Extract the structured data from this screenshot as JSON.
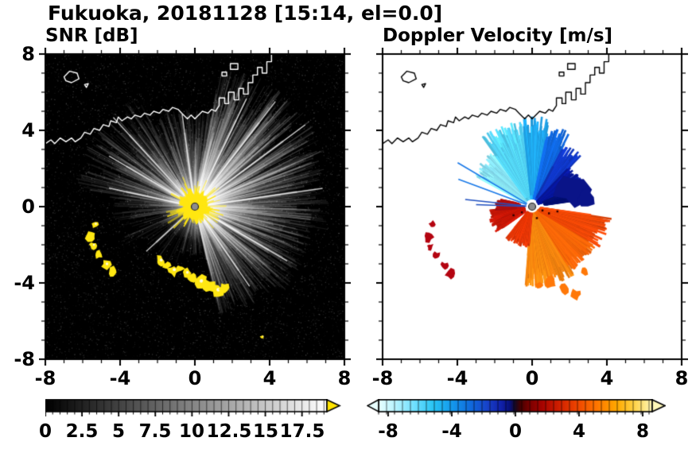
{
  "figure": {
    "title": "Fukuoka, 20181128 [15:14, el=0.0]"
  },
  "chart_data": [
    {
      "type": "heatmap",
      "panel": "left",
      "title": "SNR [dB]",
      "xlim": [
        -8,
        8
      ],
      "ylim": [
        -8,
        8
      ],
      "xticks": [
        -8,
        -4,
        0,
        4,
        8
      ],
      "yticks": [
        8,
        4,
        0,
        -4,
        -8
      ],
      "xtick_labels": [
        "-8",
        "-4",
        "0",
        "4",
        "8"
      ],
      "ytick_labels": [
        "8",
        "4",
        "0",
        "-4",
        "-8"
      ],
      "minor_step": 1,
      "background": "#000000",
      "radar_site": [
        0,
        0
      ],
      "colorbar": {
        "range": [
          0,
          19.2
        ],
        "minor_step": 0.5,
        "label_values": [
          0,
          2.5,
          5,
          7.5,
          10,
          12.5,
          15,
          17.5
        ],
        "tick_labels": [
          "0",
          "2.5",
          "5",
          "7.5",
          "10",
          "12.5",
          "15",
          "17.5"
        ],
        "colormap": [
          [
            0,
            "#000000"
          ],
          [
            1,
            "#ffffff"
          ]
        ],
        "over_color": "#ffe400",
        "arrow_right": true,
        "arrow_left": false
      },
      "features": {
        "noise_count": 9000,
        "glow_radius": 1.9,
        "ray_sectors": [
          {
            "a0": -78,
            "a1": -45,
            "count": 240,
            "rmin": 0.9,
            "rmax": 6.0,
            "alpha": 0.1
          },
          {
            "a0": -45,
            "a1": -12,
            "count": 280,
            "rmin": 0.9,
            "rmax": 6.5,
            "alpha": 0.12
          },
          {
            "a0": -12,
            "a1": 22,
            "count": 300,
            "rmin": 0.9,
            "rmax": 7.2,
            "alpha": 0.12
          },
          {
            "a0": 22,
            "a1": 80,
            "count": 480,
            "rmin": 0.9,
            "rmax": 7.6,
            "alpha": 0.14
          },
          {
            "a0": 80,
            "a1": 118,
            "count": 200,
            "rmin": 0.9,
            "rmax": 5.2,
            "alpha": 0.1
          },
          {
            "a0": 118,
            "a1": 172,
            "count": 280,
            "rmin": 0.9,
            "rmax": 6.6,
            "alpha": 0.11
          },
          {
            "a0": 172,
            "a1": 208,
            "count": 80,
            "rmin": 0.9,
            "rmax": 4.6,
            "alpha": 0.08
          },
          {
            "a0": 208,
            "a1": 252,
            "count": 36,
            "rmin": 0.9,
            "rmax": 3.6,
            "alpha": 0.07
          },
          {
            "a0": 252,
            "a1": 282,
            "count": 56,
            "rmin": 0.7,
            "rmax": 2.6,
            "alpha": 0.08
          }
        ],
        "bright_rays": [
          {
            "a": 8,
            "r": 6.9
          },
          {
            "a": 36,
            "r": 7.3
          },
          {
            "a": 52,
            "r": 7.0
          },
          {
            "a": 64,
            "r": 6.3
          },
          {
            "a": 98,
            "r": 4.9
          },
          {
            "a": 133,
            "r": 6.4
          },
          {
            "a": 150,
            "r": 5.3
          },
          {
            "a": 168,
            "r": 4.7
          },
          {
            "a": 222,
            "r": 3.5
          },
          {
            "a": -30,
            "r": 5.7
          },
          {
            "a": -55,
            "r": 5.1
          }
        ],
        "center_blob": {
          "color": "#ffe712",
          "r_core": 0.78,
          "r_spikes": 1.7,
          "spikes": 110
        },
        "yellow_color": "#ffe712",
        "yellow_patches": [
          [
            -5.35,
            -0.95,
            0.2
          ],
          [
            -5.55,
            -1.55,
            0.26
          ],
          [
            -5.45,
            -2.05,
            0.18
          ],
          [
            -5.15,
            -2.5,
            0.2
          ],
          [
            -4.75,
            -3.05,
            0.24
          ],
          [
            -4.4,
            -3.45,
            0.28
          ],
          [
            -1.85,
            -2.85,
            0.26
          ],
          [
            -1.5,
            -3.1,
            0.22
          ],
          [
            -1.15,
            -3.35,
            0.28
          ],
          [
            -0.8,
            -3.25,
            0.2
          ],
          [
            -0.45,
            -3.5,
            0.24
          ],
          [
            -0.1,
            -3.7,
            0.28
          ],
          [
            0.3,
            -3.95,
            0.32
          ],
          [
            0.75,
            -4.2,
            0.36
          ],
          [
            1.2,
            -4.4,
            0.32
          ],
          [
            1.55,
            -4.25,
            0.24
          ],
          [
            3.6,
            -6.85,
            0.1
          ]
        ]
      }
    },
    {
      "type": "heatmap",
      "panel": "right",
      "title": "Doppler Velocity [m/s]",
      "xlim": [
        -8,
        8
      ],
      "ylim": [
        -8,
        8
      ],
      "xticks": [
        -8,
        -4,
        0,
        4,
        8
      ],
      "yticks": [
        8,
        4,
        0,
        -4,
        -8
      ],
      "xtick_labels": [
        "-8",
        "-4",
        "0",
        "4",
        "8"
      ],
      "minor_step": 1,
      "background": "#ffffff",
      "radar_site": [
        0,
        0
      ],
      "colorbar": {
        "range": [
          -8.6,
          8.6
        ],
        "minor_step": 0.5,
        "label_values": [
          -8,
          -4,
          0,
          4,
          8
        ],
        "tick_labels": [
          "-8",
          "-4",
          "0",
          "4",
          "8"
        ],
        "colormap": [
          [
            0,
            "#e8ffff"
          ],
          [
            0.06,
            "#b8f4ff"
          ],
          [
            0.13,
            "#70e0ff"
          ],
          [
            0.2,
            "#28c4f4"
          ],
          [
            0.27,
            "#1498ec"
          ],
          [
            0.34,
            "#1068dc"
          ],
          [
            0.4,
            "#1840c8"
          ],
          [
            0.45,
            "#1020a8"
          ],
          [
            0.48,
            "#081078"
          ],
          [
            0.5,
            "#180820"
          ],
          [
            0.52,
            "#480000"
          ],
          [
            0.55,
            "#780000"
          ],
          [
            0.6,
            "#a80400"
          ],
          [
            0.66,
            "#d02000"
          ],
          [
            0.73,
            "#f04800"
          ],
          [
            0.8,
            "#ff7800"
          ],
          [
            0.87,
            "#ffa800"
          ],
          [
            0.93,
            "#ffd040"
          ],
          [
            1,
            "#fff8b8"
          ]
        ],
        "arrow_right": true,
        "arrow_left": true
      },
      "features": {
        "velocity_sectors": [
          {
            "a0": 126,
            "a1": 152,
            "c": "#8ceaff",
            "rmin": 0.5,
            "rmax": 3.6
          },
          {
            "a0": 96,
            "a1": 126,
            "c": "#54d4f8",
            "rmin": 0.5,
            "rmax": 4.6
          },
          {
            "a0": 78,
            "a1": 96,
            "c": "#20a8f0",
            "rmin": 0.5,
            "rmax": 4.8
          },
          {
            "a0": 62,
            "a1": 78,
            "c": "#1068e0",
            "rmin": 0.5,
            "rmax": 4.4
          },
          {
            "a0": 46,
            "a1": 62,
            "c": "#1038c8",
            "rmin": 0.5,
            "rmax": 3.8
          },
          {
            "a0": 22,
            "a1": 46,
            "c": "#0818a0",
            "rmin": 0.4,
            "rmax": 3.0
          },
          {
            "a0": 8,
            "a1": 22,
            "c": "#041070",
            "rmin": 0.8,
            "rmax": 2.6
          },
          {
            "a0": -95,
            "a1": -58,
            "c": "#ff8810",
            "rmin": 0.4,
            "rmax": 4.3
          },
          {
            "a0": -58,
            "a1": -30,
            "c": "#ff6808",
            "rmin": 0.4,
            "rmax": 4.0
          },
          {
            "a0": -30,
            "a1": -8,
            "c": "#f04808",
            "rmin": 0.5,
            "rmax": 4.3
          },
          {
            "a0": -130,
            "a1": -95,
            "c": "#e83808",
            "rmin": 0.4,
            "rmax": 2.2
          },
          {
            "a0": 185,
            "a1": 215,
            "c": "#c81808",
            "rmin": 0.5,
            "rmax": 2.4
          },
          {
            "a0": 168,
            "a1": 185,
            "c": "#b01010",
            "rmin": 0.8,
            "rmax": 2.0
          }
        ],
        "thin_rays": [
          {
            "a": 150,
            "r": 4.6,
            "c": "#1878e8"
          },
          {
            "a": 160,
            "r": 4.2,
            "c": "#1878e8"
          },
          {
            "a": 174,
            "r": 3.6,
            "c": "#2050c0"
          },
          {
            "a": 178,
            "r": 3.0,
            "c": "#2050c0"
          }
        ],
        "navy_blobs": [
          [
            2.1,
            0.9,
            0.8,
            "#0a1488"
          ],
          [
            2.9,
            0.5,
            0.45,
            "#0a1488"
          ]
        ],
        "red_patches": [
          [
            -5.35,
            -0.95,
            0.18
          ],
          [
            -5.55,
            -1.6,
            0.24
          ],
          [
            -5.45,
            -2.1,
            0.16
          ],
          [
            -5.1,
            -2.55,
            0.18
          ],
          [
            -4.7,
            -3.1,
            0.2
          ],
          [
            -4.4,
            -3.5,
            0.24
          ]
        ],
        "red_color": "#b40410",
        "orange_scatter": [
          [
            1.0,
            -3.95,
            0.28
          ],
          [
            1.7,
            -4.3,
            0.3
          ],
          [
            2.35,
            -4.6,
            0.26
          ],
          [
            2.8,
            -3.4,
            0.2
          ],
          [
            0.35,
            -4.15,
            0.18
          ]
        ],
        "orange_color": "#ff7808",
        "dark_specks": [
          [
            0.5,
            -0.15
          ],
          [
            0.85,
            -0.3
          ],
          [
            -0.6,
            -0.25
          ],
          [
            -1.05,
            -0.4
          ],
          [
            0.2,
            -0.55
          ],
          [
            1.3,
            -0.2
          ]
        ],
        "speck_color": "#300000",
        "center_gap_radius": 0.32
      }
    }
  ],
  "coastline": {
    "color_left_panel": "#ffffff",
    "color_right_panel": "#000000",
    "paths": [
      [
        [
          -8,
          3.3
        ],
        [
          -7.7,
          3.5
        ],
        [
          -7.5,
          3.3
        ],
        [
          -7.2,
          3.6
        ],
        [
          -6.9,
          3.4
        ],
        [
          -6.6,
          3.6
        ],
        [
          -6.4,
          3.4
        ],
        [
          -6.1,
          3.6
        ],
        [
          -5.9,
          3.9
        ],
        [
          -5.6,
          3.8
        ],
        [
          -5.4,
          4.1
        ],
        [
          -5.1,
          4.0
        ],
        [
          -4.9,
          4.3
        ],
        [
          -4.6,
          4.2
        ],
        [
          -4.5,
          4.5
        ],
        [
          -4.2,
          4.4
        ],
        [
          -4.1,
          4.7
        ],
        [
          -3.9,
          4.5
        ],
        [
          -3.6,
          4.7
        ],
        [
          -3.4,
          4.6
        ],
        [
          -3.2,
          4.8
        ],
        [
          -2.9,
          4.7
        ],
        [
          -2.7,
          4.9
        ],
        [
          -2.4,
          4.8
        ],
        [
          -2.2,
          5.0
        ],
        [
          -1.9,
          4.9
        ],
        [
          -1.7,
          5.1
        ],
        [
          -1.4,
          5.0
        ],
        [
          -1.2,
          5.2
        ],
        [
          -0.9,
          5.1
        ],
        [
          -0.7,
          4.9
        ],
        [
          -0.4,
          4.6
        ],
        [
          -0.2,
          4.8
        ],
        [
          0.0,
          4.6
        ],
        [
          0.2,
          4.8
        ],
        [
          0.4,
          5.0
        ],
        [
          0.7,
          4.9
        ],
        [
          0.9,
          5.1
        ],
        [
          1.1,
          5.0
        ],
        [
          1.3,
          5.3
        ],
        [
          1.3,
          5.7
        ],
        [
          1.6,
          5.7
        ],
        [
          1.6,
          5.4
        ],
        [
          1.8,
          5.4
        ],
        [
          1.8,
          6.0
        ],
        [
          2.1,
          6.0
        ],
        [
          2.1,
          5.6
        ],
        [
          2.35,
          5.6
        ],
        [
          2.35,
          6.2
        ],
        [
          2.6,
          6.2
        ],
        [
          2.6,
          5.9
        ],
        [
          2.85,
          5.9
        ],
        [
          2.85,
          6.5
        ],
        [
          3.1,
          6.5
        ],
        [
          3.1,
          6.9
        ],
        [
          3.35,
          6.9
        ],
        [
          3.35,
          7.3
        ],
        [
          3.6,
          7.3
        ],
        [
          3.6,
          7.0
        ],
        [
          3.85,
          7.0
        ],
        [
          3.85,
          7.6
        ],
        [
          4.1,
          7.6
        ],
        [
          4.1,
          8.0
        ]
      ]
    ],
    "islands": [
      [
        [
          -7.0,
          6.8
        ],
        [
          -6.7,
          7.1
        ],
        [
          -6.3,
          7.0
        ],
        [
          -6.2,
          6.7
        ],
        [
          -6.6,
          6.5
        ],
        [
          -6.9,
          6.6
        ]
      ],
      [
        [
          -5.9,
          6.4
        ],
        [
          -5.7,
          6.45
        ],
        [
          -5.8,
          6.25
        ]
      ],
      [
        [
          1.9,
          7.2
        ],
        [
          2.3,
          7.2
        ],
        [
          2.3,
          7.5
        ],
        [
          1.9,
          7.5
        ]
      ],
      [
        [
          1.45,
          6.85
        ],
        [
          1.7,
          6.85
        ],
        [
          1.7,
          7.05
        ],
        [
          1.45,
          7.05
        ]
      ]
    ]
  }
}
